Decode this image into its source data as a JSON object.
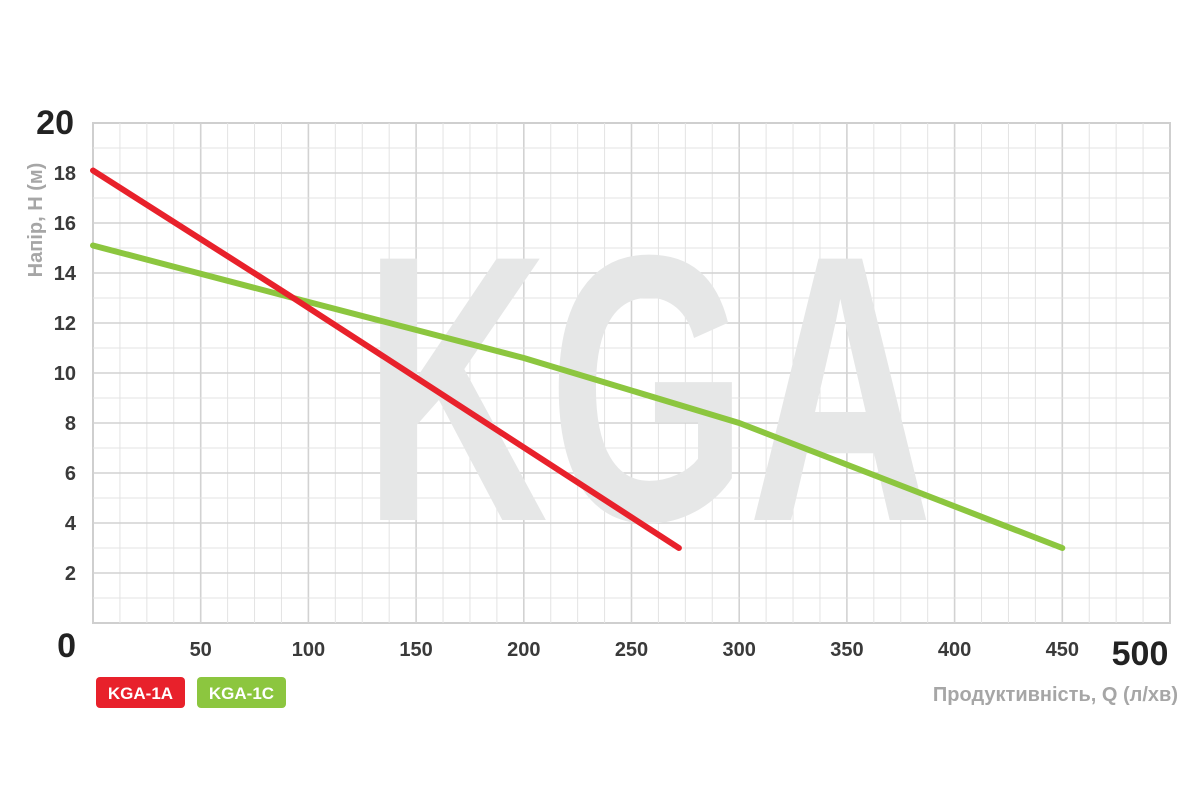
{
  "chart_data": {
    "type": "line",
    "watermark": "KGA",
    "xlabel": "Продуктивність, Q (л/хв)",
    "ylabel": "Напір, H (м)",
    "xlim": [
      0,
      500
    ],
    "ylim": [
      0,
      20
    ],
    "x_ticks": [
      "0",
      "50",
      "100",
      "150",
      "200",
      "250",
      "300",
      "350",
      "400",
      "450",
      "500"
    ],
    "y_ticks": [
      "0",
      "2",
      "4",
      "6",
      "8",
      "10",
      "12",
      "14",
      "16",
      "18",
      "20"
    ],
    "grid": true,
    "legend_position": "bottom-left",
    "series": [
      {
        "name": "KGA-1A",
        "color": "#e8212b",
        "points": [
          [
            0,
            18.1
          ],
          [
            93,
            13.0
          ],
          [
            272,
            3.0
          ]
        ]
      },
      {
        "name": "KGA-1C",
        "color": "#8cc63f",
        "points": [
          [
            0,
            15.1
          ],
          [
            93,
            13.0
          ],
          [
            200,
            10.6
          ],
          [
            300,
            8.0
          ],
          [
            450,
            3.0
          ]
        ]
      }
    ]
  }
}
